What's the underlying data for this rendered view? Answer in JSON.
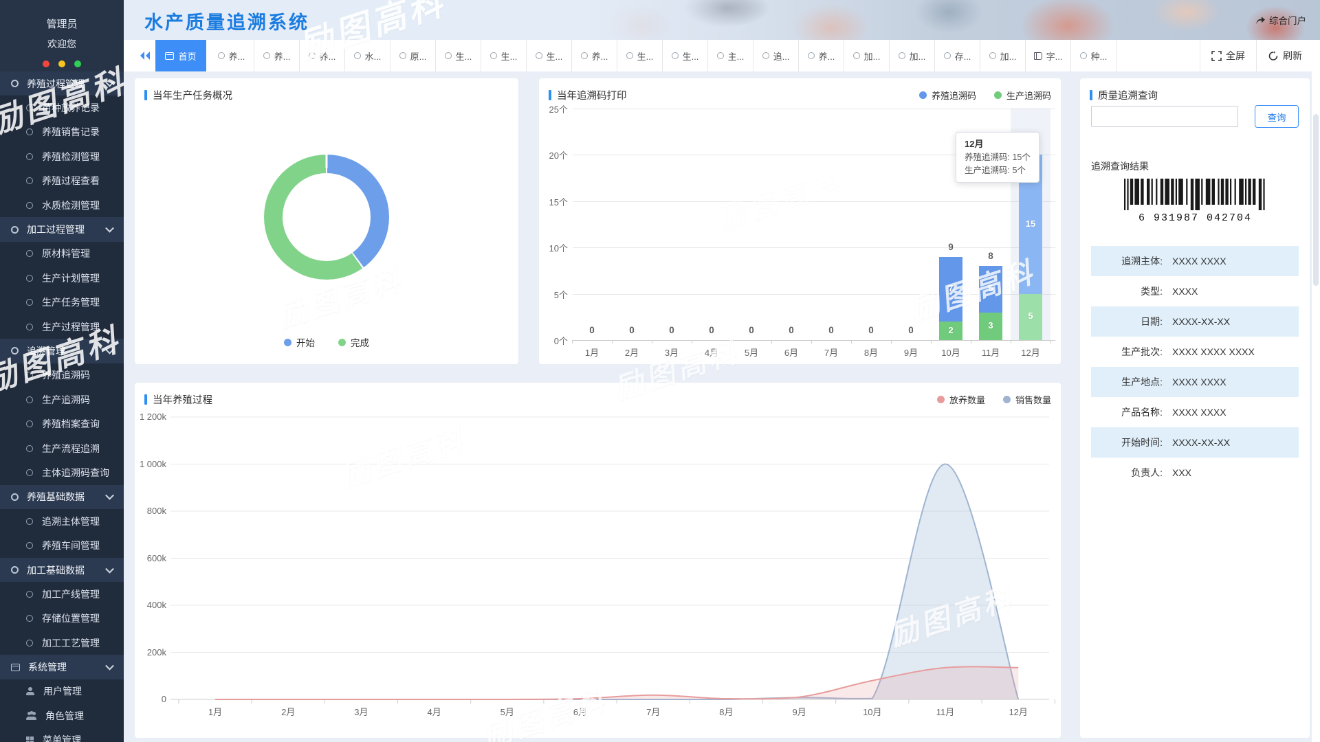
{
  "app": {
    "title": "水产质量追溯系统",
    "portal": "综合门户",
    "watermark": "励图高科"
  },
  "theme": {
    "accent": "#3e8ef7",
    "title_blue": "#1b7ce0",
    "sidebar_bg": "#202b3c",
    "section_bg": "#2b3a51",
    "stripe_bg": "#e0effa"
  },
  "sidebar": {
    "username": "管理员",
    "welcome": "欢迎您",
    "menu": [
      {
        "label": "养殖过程管理",
        "type": "section",
        "icon": "circle-icon",
        "chevron": true
      },
      {
        "label": "苗种放养记录",
        "type": "item",
        "icon": "circle-icon"
      },
      {
        "label": "养殖销售记录",
        "type": "item",
        "icon": "circle-icon"
      },
      {
        "label": "养殖检测管理",
        "type": "item",
        "icon": "circle-icon"
      },
      {
        "label": "养殖过程查看",
        "type": "item",
        "icon": "circle-icon"
      },
      {
        "label": "水质检测管理",
        "type": "item",
        "icon": "circle-icon"
      },
      {
        "label": "加工过程管理",
        "type": "section",
        "icon": "circle-icon",
        "chevron": true
      },
      {
        "label": "原材料管理",
        "type": "item",
        "icon": "circle-icon"
      },
      {
        "label": "生产计划管理",
        "type": "item",
        "icon": "circle-icon"
      },
      {
        "label": "生产任务管理",
        "type": "item",
        "icon": "circle-icon"
      },
      {
        "label": "生产过程管理",
        "type": "item",
        "icon": "circle-icon"
      },
      {
        "label": "追溯管理",
        "type": "section",
        "icon": "circle-icon",
        "chevron": true
      },
      {
        "label": "养殖追溯码",
        "type": "item",
        "icon": "circle-icon"
      },
      {
        "label": "生产追溯码",
        "type": "item",
        "icon": "circle-icon"
      },
      {
        "label": "养殖档案查询",
        "type": "item",
        "icon": "circle-icon"
      },
      {
        "label": "生产流程追溯",
        "type": "item",
        "icon": "circle-icon"
      },
      {
        "label": "主体追溯码查询",
        "type": "item",
        "icon": "circle-icon"
      },
      {
        "label": "养殖基础数据",
        "type": "section",
        "icon": "circle-icon",
        "chevron": true
      },
      {
        "label": "追溯主体管理",
        "type": "item",
        "icon": "circle-icon"
      },
      {
        "label": "养殖车间管理",
        "type": "item",
        "icon": "circle-icon"
      },
      {
        "label": "加工基础数据",
        "type": "section",
        "icon": "circle-icon",
        "chevron": true
      },
      {
        "label": "加工产线管理",
        "type": "item",
        "icon": "circle-icon"
      },
      {
        "label": "存储位置管理",
        "type": "item",
        "icon": "circle-icon"
      },
      {
        "label": "加工工艺管理",
        "type": "item",
        "icon": "circle-icon"
      },
      {
        "label": "系统管理",
        "type": "section",
        "icon": "window-icon",
        "chevron": true
      },
      {
        "label": "用户管理",
        "type": "item",
        "icon": "user-icon"
      },
      {
        "label": "角色管理",
        "type": "item",
        "icon": "users-icon"
      },
      {
        "label": "菜单管理",
        "type": "item",
        "icon": "grid-icon"
      }
    ]
  },
  "tabbar": {
    "home": {
      "label": "首页",
      "icon": "window-icon"
    },
    "tabs": [
      {
        "label": "养...",
        "icon": "circle-icon"
      },
      {
        "label": "养...",
        "icon": "circle-icon"
      },
      {
        "label": "养...",
        "icon": "circle-icon"
      },
      {
        "label": "水...",
        "icon": "circle-icon"
      },
      {
        "label": "原...",
        "icon": "circle-icon"
      },
      {
        "label": "生...",
        "icon": "circle-icon"
      },
      {
        "label": "生...",
        "icon": "circle-icon"
      },
      {
        "label": "生...",
        "icon": "circle-icon"
      },
      {
        "label": "养...",
        "icon": "circle-icon"
      },
      {
        "label": "生...",
        "icon": "circle-icon"
      },
      {
        "label": "生...",
        "icon": "circle-icon"
      },
      {
        "label": "主...",
        "icon": "circle-icon"
      },
      {
        "label": "追...",
        "icon": "circle-icon"
      },
      {
        "label": "养...",
        "icon": "circle-icon"
      },
      {
        "label": "加...",
        "icon": "circle-icon"
      },
      {
        "label": "加...",
        "icon": "circle-icon"
      },
      {
        "label": "存...",
        "icon": "circle-icon"
      },
      {
        "label": "加...",
        "icon": "circle-icon"
      },
      {
        "label": "字...",
        "icon": "book-icon"
      },
      {
        "label": "种...",
        "icon": "circle-icon"
      }
    ],
    "fullscreen": "全屏",
    "refresh": "刷新"
  },
  "query_panel": {
    "title": "质量追溯查询",
    "search_value": "",
    "button": "查询",
    "result_title": "追溯查询结果",
    "barcode_digits": "6 931987 042704",
    "rows": [
      {
        "label": "追溯主体:",
        "value": "XXXX XXXX",
        "stripe": "striped"
      },
      {
        "label": "类型:",
        "value": "XXXX",
        "stripe": ""
      },
      {
        "label": "日期:",
        "value": "XXXX-XX-XX",
        "stripe": "striped"
      },
      {
        "label": "生产批次:",
        "value": "XXXX XXXX XXXX",
        "stripe": ""
      },
      {
        "label": "生产地点:",
        "value": "XXXX XXXX",
        "stripe": "striped"
      },
      {
        "label": "产品名称:",
        "value": "XXXX XXXX",
        "stripe": ""
      },
      {
        "label": "开始时间:",
        "value": "XXXX-XX-XX",
        "stripe": "striped"
      },
      {
        "label": "负责人:",
        "value": "XXX",
        "stripe": ""
      }
    ]
  },
  "chart_data": [
    {
      "type": "pie",
      "title": "当年生产任务概况",
      "donut": true,
      "legend_position": "bottom",
      "series": [
        {
          "name": "开始",
          "pct": 40,
          "color": "#6d9ee9"
        },
        {
          "name": "完成",
          "pct": 60,
          "color": "#82d38a"
        }
      ]
    },
    {
      "type": "bar",
      "title": "当年追溯码打印",
      "stacked": true,
      "categories": [
        "1月",
        "2月",
        "3月",
        "4月",
        "5月",
        "6月",
        "7月",
        "8月",
        "9月",
        "10月",
        "11月",
        "12月"
      ],
      "series": [
        {
          "name": "养殖追溯码",
          "color": "#6297e9",
          "hover_color": "#8ab6f3",
          "values": [
            0,
            0,
            0,
            0,
            0,
            0,
            0,
            0,
            0,
            7,
            5,
            15
          ]
        },
        {
          "name": "生产追溯码",
          "color": "#71cb7d",
          "hover_color": "#9cdfa8",
          "values": [
            0,
            0,
            0,
            0,
            0,
            0,
            0,
            0,
            0,
            2,
            3,
            5
          ]
        }
      ],
      "totals": [
        0,
        0,
        0,
        0,
        0,
        0,
        0,
        0,
        0,
        9,
        8,
        20
      ],
      "ylabels": [
        "0个",
        "5个",
        "10个",
        "15个",
        "20个",
        "25个"
      ],
      "ymax": 25,
      "legend_position": "top-right",
      "highlighted_category": "12月",
      "tooltip": {
        "title": "12月",
        "line1": "养殖追溯码: 15个",
        "line2": "生产追溯码: 5个"
      }
    },
    {
      "type": "area",
      "title": "当年养殖过程",
      "categories": [
        "1月",
        "2月",
        "3月",
        "4月",
        "5月",
        "6月",
        "7月",
        "8月",
        "9月",
        "10月",
        "11月",
        "12月"
      ],
      "series": [
        {
          "name": "放养数量",
          "color": "#e79c9c",
          "fill": "rgba(231,156,156,0.22)",
          "values": [
            0,
            0,
            0,
            0,
            0,
            3000,
            18000,
            3000,
            10000,
            80000,
            135000,
            135000
          ]
        },
        {
          "name": "销售数量",
          "color": "#9fb4d1",
          "fill": "rgba(176,196,222,0.38)",
          "values": [
            0,
            0,
            0,
            0,
            0,
            0,
            0,
            0,
            8000,
            4000,
            1000000,
            0
          ]
        }
      ],
      "ylabels": [
        "0",
        "200k",
        "400k",
        "600k",
        "800k",
        "1 000k",
        "1 200k"
      ],
      "ymax": 1200000,
      "legend_position": "top-right"
    }
  ]
}
